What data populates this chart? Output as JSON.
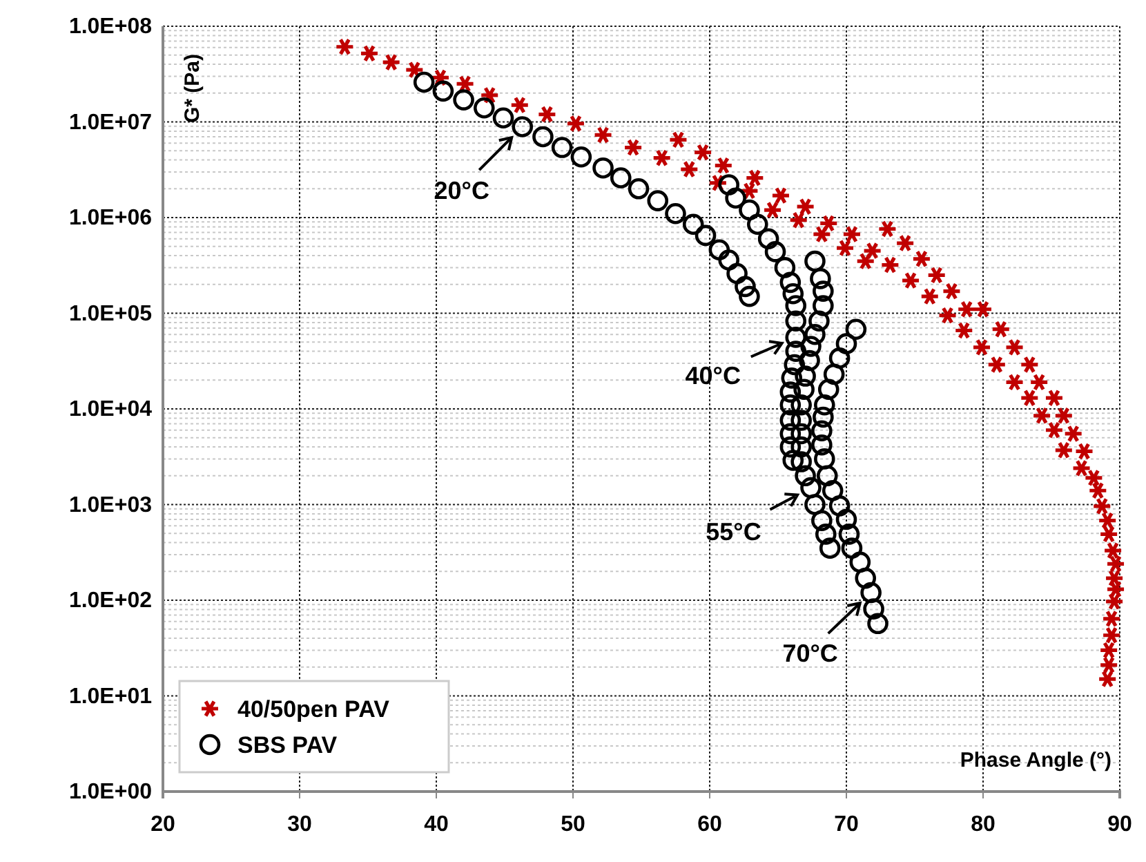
{
  "chart_data": {
    "type": "scatter",
    "xlabel": "Phase Angle (°)",
    "ylabel": "G* (Pa)",
    "xlim": [
      20,
      90
    ],
    "xticks": [
      20,
      30,
      40,
      50,
      60,
      70,
      80,
      90
    ],
    "ylim": [
      1,
      100000000
    ],
    "yticks": [
      {
        "value": 1,
        "label": "1.0E+00"
      },
      {
        "value": 10,
        "label": "1.0E+01"
      },
      {
        "value": 100,
        "label": "1.0E+02"
      },
      {
        "value": 1000,
        "label": "1.0E+03"
      },
      {
        "value": 10000,
        "label": "1.0E+04"
      },
      {
        "value": 100000,
        "label": "1.0E+05"
      },
      {
        "value": 1000000,
        "label": "1.0E+06"
      },
      {
        "value": 10000000,
        "label": "1.0E+07"
      },
      {
        "value": 100000000,
        "label": "1.0E+08"
      }
    ],
    "log": "y",
    "grid": true,
    "legend": "bottom left",
    "annotations": [
      {
        "text": "20°C",
        "x": 46.3,
        "y": 8900000
      },
      {
        "text": "40°C",
        "x": 66.3,
        "y": 56000
      },
      {
        "text": "55°C",
        "x": 67.4,
        "y": 1500
      },
      {
        "text": "70°C",
        "x": 71.8,
        "y": 120
      }
    ],
    "series": [
      {
        "name": "40/50pen PAV",
        "color": "#c00000",
        "marker": "cross",
        "x": [
          33.3,
          35.1,
          36.7,
          38.4,
          40.3,
          42.1,
          43.9,
          46.1,
          48.1,
          50.2,
          52.2,
          54.4,
          56.5,
          58.5,
          60.6,
          57.7,
          59.5,
          61.0,
          63.3,
          65.2,
          67.0,
          68.7,
          70.4,
          71.9,
          62.9,
          64.6,
          66.5,
          68.2,
          69.9,
          71.4,
          73.0,
          74.3,
          75.5,
          76.6,
          77.7,
          78.8,
          80.0,
          81.3,
          82.3,
          83.4,
          84.1,
          85.2,
          85.9,
          86.6,
          87.4,
          88.1,
          88.4,
          88.7,
          89.1,
          89.2,
          89.5,
          89.7,
          89.6,
          89.7,
          89.6,
          89.4,
          89.4,
          89.2,
          89.2,
          89.1,
          73.2,
          74.7,
          76.1,
          77.4,
          78.6,
          79.9,
          81.0,
          82.3,
          83.4,
          84.3,
          85.2,
          85.9,
          87.2
        ],
        "values": [
          61000000,
          52000000,
          42000000,
          35000000,
          29000000,
          25000000,
          19000000,
          15000000,
          12000000,
          9600000,
          7300000,
          5400000,
          4200000,
          3200000,
          2300000,
          6500000,
          4800000,
          3500000,
          2600000,
          1700000,
          1300000,
          870000,
          670000,
          450000,
          1900000,
          1200000,
          940000,
          670000,
          480000,
          350000,
          760000,
          540000,
          370000,
          250000,
          170000,
          110000,
          110000,
          68000,
          44000,
          29000,
          19000,
          13000,
          8500,
          5500,
          3600,
          1900,
          1400,
          960,
          680,
          490,
          330,
          240,
          170,
          130,
          97,
          64,
          43,
          30,
          21,
          15,
          320000,
          220000,
          150000,
          95000,
          66000,
          44000,
          29000,
          19000,
          13000,
          8500,
          6000,
          3700,
          2400
        ]
      },
      {
        "name": "SBS PAV",
        "color": "#000000",
        "marker": "circle",
        "x": [
          39.1,
          40.5,
          42.0,
          43.5,
          44.9,
          46.3,
          47.8,
          49.2,
          50.6,
          52.2,
          53.5,
          54.8,
          56.2,
          57.5,
          58.8,
          59.7,
          60.7,
          61.4,
          62.0,
          62.6,
          62.9,
          61.4,
          61.9,
          62.9,
          63.5,
          64.3,
          64.8,
          65.5,
          65.9,
          66.1,
          66.3,
          66.3,
          66.3,
          66.3,
          66.2,
          66.0,
          65.9,
          65.9,
          65.9,
          65.9,
          65.9,
          66.1,
          67.7,
          68.1,
          68.3,
          68.3,
          68.0,
          67.7,
          67.4,
          67.3,
          67.0,
          66.9,
          66.7,
          66.7,
          66.7,
          66.7,
          66.7,
          67.0,
          67.4,
          67.7,
          68.2,
          68.5,
          68.8,
          70.7,
          70.0,
          69.5,
          69.1,
          68.7,
          68.4,
          68.3,
          68.2,
          68.2,
          68.4,
          68.6,
          69.0,
          69.5,
          70.0,
          70.2,
          70.4,
          71.0,
          71.4,
          71.8,
          72.0,
          72.3
        ],
        "values": [
          26000000,
          21000000,
          17000000,
          14000000,
          11000000,
          8900000,
          7000000,
          5400000,
          4300000,
          3300000,
          2600000,
          2000000,
          1500000,
          1100000,
          850000,
          650000,
          460000,
          360000,
          260000,
          190000,
          150000,
          2200000,
          1600000,
          1200000,
          850000,
          600000,
          440000,
          300000,
          210000,
          160000,
          120000,
          83000,
          56000,
          40000,
          29000,
          21000,
          15000,
          11000,
          7600,
          5500,
          4000,
          2900,
          350000,
          230000,
          170000,
          120000,
          83000,
          60000,
          45000,
          32000,
          22000,
          16000,
          11000,
          7600,
          5500,
          4000,
          2800,
          2000,
          1500,
          1000,
          680,
          490,
          350,
          68000,
          48000,
          34000,
          23000,
          16000,
          11000,
          8200,
          5900,
          4200,
          3000,
          2000,
          1400,
          970,
          700,
          490,
          350,
          250,
          170,
          120,
          81,
          57
        ]
      }
    ]
  }
}
